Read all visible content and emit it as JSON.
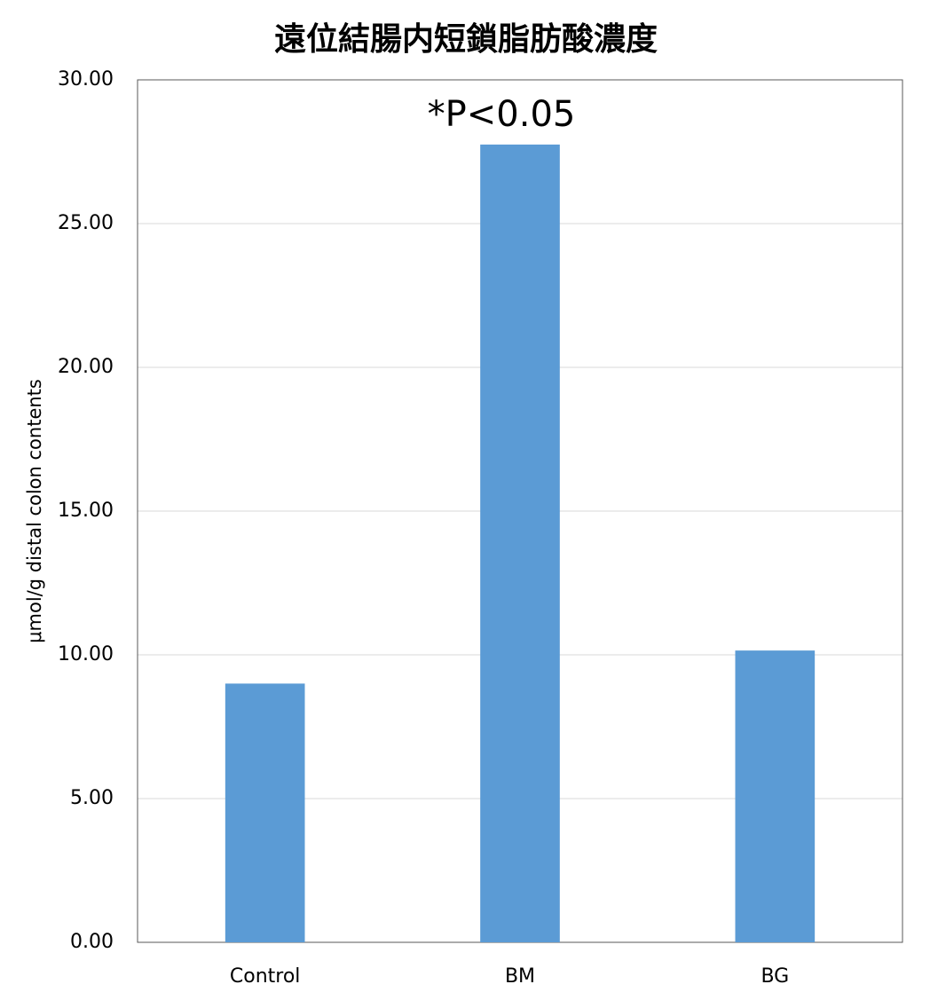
{
  "chart_data": {
    "type": "bar",
    "title": "遠位結腸内短鎖脂肪酸濃度",
    "y_label": "μmol/g distal colon contents",
    "annotation": "*P<0.05",
    "categories": [
      "Control",
      "BM",
      "BG"
    ],
    "values": [
      9.0,
      27.75,
      10.15
    ],
    "color": "#5b9bd5",
    "ylim": [
      0,
      30
    ],
    "yticks": [
      {
        "value": 0,
        "label": "0.00"
      },
      {
        "value": 5,
        "label": "5.00"
      },
      {
        "value": 10,
        "label": "10.00"
      },
      {
        "value": 15,
        "label": "15.00"
      },
      {
        "value": 20,
        "label": "20.00"
      },
      {
        "value": 25,
        "label": "25.00"
      },
      {
        "value": 30,
        "label": "30.00"
      }
    ],
    "grid": true
  }
}
